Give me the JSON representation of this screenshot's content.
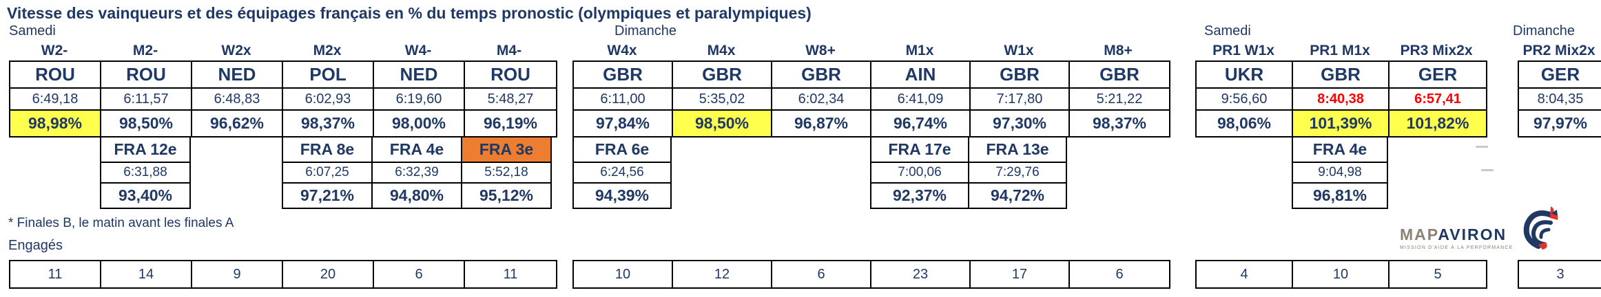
{
  "title": "Vitesse des vainqueurs et des équipages français en % du temps pronostic (olympiques et paralympiques)",
  "footnote": "* Finales B, le matin avant les finales A",
  "entrants_label": "Engagés",
  "colors": {
    "text_navy": "#1F3864",
    "highlight_yellow": "#FFFF4D",
    "highlight_orange": "#ED7D31",
    "alert_red": "#FF0000"
  },
  "logo": {
    "map": "MAP",
    "aviron": "AVIRON",
    "tagline": "MISSION D'AIDE À LA PERFORMANCE"
  },
  "blocks": [
    {
      "day": "Samedi",
      "columns": [
        {
          "boat": "W2-",
          "winner": "ROU",
          "time": "6:49,18",
          "time_red": false,
          "pct": "98,98%",
          "pct_yellow": true,
          "fra_place": "",
          "fra_time": "",
          "fra_pct": "",
          "fra_orange": false,
          "entrants": "11"
        },
        {
          "boat": "M2-",
          "winner": "ROU",
          "time": "6:11,57",
          "time_red": false,
          "pct": "98,50%",
          "pct_yellow": false,
          "fra_place": "FRA 12e",
          "fra_time": "6:31,88",
          "fra_pct": "93,40%",
          "fra_orange": false,
          "entrants": "14"
        },
        {
          "boat": "W2x",
          "winner": "NED",
          "time": "6:48,83",
          "time_red": false,
          "pct": "96,62%",
          "pct_yellow": false,
          "fra_place": "",
          "fra_time": "",
          "fra_pct": "",
          "fra_orange": false,
          "entrants": "9"
        },
        {
          "boat": "M2x",
          "winner": "POL",
          "time": "6:02,93",
          "time_red": false,
          "pct": "98,37%",
          "pct_yellow": false,
          "fra_place": "FRA 8e",
          "fra_time": "6:07,25",
          "fra_pct": "97,21%",
          "fra_orange": false,
          "entrants": "20"
        },
        {
          "boat": "W4-",
          "winner": "NED",
          "time": "6:19,60",
          "time_red": false,
          "pct": "98,00%",
          "pct_yellow": false,
          "fra_place": "FRA 4e",
          "fra_time": "6:32,39",
          "fra_pct": "94,80%",
          "fra_orange": false,
          "entrants": "6"
        },
        {
          "boat": "M4-",
          "winner": "ROU",
          "time": "5:48,27",
          "time_red": false,
          "pct": "96,19%",
          "pct_yellow": false,
          "fra_place": "FRA 3e",
          "fra_time": "5:52,18",
          "fra_pct": "95,12%",
          "fra_orange": true,
          "entrants": "11"
        }
      ]
    },
    {
      "day": "Dimanche",
      "columns": [
        {
          "boat": "W4x",
          "winner": "GBR",
          "time": "6:11,00",
          "time_red": false,
          "pct": "97,84%",
          "pct_yellow": false,
          "fra_place": "FRA 6e",
          "fra_time": "6:24,56",
          "fra_pct": "94,39%",
          "fra_orange": false,
          "entrants": "10"
        },
        {
          "boat": "M4x",
          "winner": "GBR",
          "time": "5:35,02",
          "time_red": false,
          "pct": "98,50%",
          "pct_yellow": true,
          "fra_place": "",
          "fra_time": "",
          "fra_pct": "",
          "fra_orange": false,
          "entrants": "12"
        },
        {
          "boat": "W8+",
          "winner": "GBR",
          "time": "6:02,34",
          "time_red": false,
          "pct": "96,87%",
          "pct_yellow": false,
          "fra_place": "",
          "fra_time": "",
          "fra_pct": "",
          "fra_orange": false,
          "entrants": "6"
        },
        {
          "boat": "M1x",
          "winner": "AIN",
          "time": "6:41,09",
          "time_red": false,
          "pct": "96,74%",
          "pct_yellow": false,
          "fra_place": "FRA 17e",
          "fra_time": "7:00,06",
          "fra_pct": "92,37%",
          "fra_orange": false,
          "entrants": "23"
        },
        {
          "boat": "W1x",
          "winner": "GBR",
          "time": "7:17,80",
          "time_red": false,
          "pct": "97,30%",
          "pct_yellow": false,
          "fra_place": "FRA 13e",
          "fra_time": "7:29,76",
          "fra_pct": "94,72%",
          "fra_orange": false,
          "entrants": "17"
        },
        {
          "boat": "M8+",
          "winner": "GBR",
          "time": "5:21,22",
          "time_red": false,
          "pct": "98,37%",
          "pct_yellow": false,
          "fra_place": "",
          "fra_time": "",
          "fra_pct": "",
          "fra_orange": false,
          "entrants": "6"
        }
      ]
    },
    {
      "day": "Samedi",
      "columns": [
        {
          "boat": "PR1 W1x",
          "winner": "UKR",
          "time": "9:56,60",
          "time_red": false,
          "pct": "98,06%",
          "pct_yellow": false,
          "fra_place": "",
          "fra_time": "",
          "fra_pct": "",
          "fra_orange": false,
          "entrants": "4"
        },
        {
          "boat": "PR1 M1x",
          "winner": "GBR",
          "time": "8:40,38",
          "time_red": true,
          "pct": "101,39%",
          "pct_yellow": true,
          "fra_place": "FRA 4e",
          "fra_time": "9:04,98",
          "fra_pct": "96,81%",
          "fra_orange": false,
          "entrants": "10"
        },
        {
          "boat": "PR3 Mix2x",
          "winner": "GER",
          "time": "6:57,41",
          "time_red": true,
          "pct": "101,82%",
          "pct_yellow": true,
          "fra_place": "",
          "fra_time": "",
          "fra_pct": "",
          "fra_orange": false,
          "entrants": "5"
        }
      ]
    },
    {
      "day": "Dimanche",
      "columns": [
        {
          "boat": "PR2 Mix2x",
          "winner": "GER",
          "time": "8:04,35",
          "time_red": false,
          "pct": "97,97%",
          "pct_yellow": false,
          "fra_place": "",
          "fra_time": "",
          "fra_pct": "",
          "fra_orange": false,
          "entrants": "3"
        }
      ]
    }
  ]
}
